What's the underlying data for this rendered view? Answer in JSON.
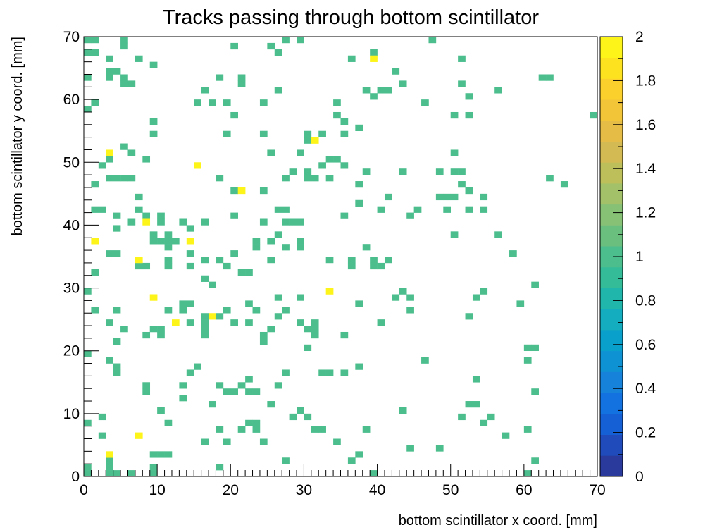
{
  "chart_data": {
    "type": "heatmap",
    "title": "Tracks passing through bottom scintillator",
    "xlabel": "bottom scintillator x coord. [mm]",
    "ylabel": "bottom scintillator y coord. [mm]",
    "xlim": [
      0,
      70
    ],
    "ylim": [
      0,
      70
    ],
    "bin_width": 1,
    "x_ticks": [
      "0",
      "10",
      "20",
      "30",
      "40",
      "50",
      "60",
      "70"
    ],
    "y_ticks": [
      "0",
      "10",
      "20",
      "30",
      "40",
      "50",
      "60",
      "70"
    ],
    "z_range": [
      0,
      2
    ],
    "z_ticks": [
      "0",
      "0.2",
      "0.4",
      "0.6",
      "0.8",
      "1",
      "1.2",
      "1.4",
      "1.6",
      "1.8",
      "2"
    ],
    "palette": [
      "#2a3a9c",
      "#1f4cba",
      "#1660d6",
      "#1472e0",
      "#1682da",
      "#0f92d4",
      "#0aa0cc",
      "#14acbf",
      "#20b6ac",
      "#34bc98",
      "#4cbe8e",
      "#6abf7f",
      "#86c176",
      "#a2c168",
      "#bdc05a",
      "#d4ba52",
      "#e4bc46",
      "#f2c438",
      "#fcd02c",
      "#fde220",
      "#fdf41a"
    ],
    "colors": {
      "count_1": "#4cbe8e",
      "count_2": "#fdf41a"
    },
    "grid": false,
    "legend": "colorbar-right",
    "points_value_2": [
      [
        39,
        66
      ],
      [
        31,
        53
      ],
      [
        3,
        51
      ],
      [
        15,
        49
      ],
      [
        21,
        45
      ],
      [
        8,
        40
      ],
      [
        1,
        37
      ],
      [
        14,
        37
      ],
      [
        7,
        34
      ],
      [
        33,
        29
      ],
      [
        9,
        28
      ],
      [
        12,
        24
      ],
      [
        17,
        25
      ],
      [
        7,
        6
      ],
      [
        3,
        3
      ]
    ],
    "points_value_1": [
      [
        0,
        69
      ],
      [
        1,
        69
      ],
      [
        5,
        69
      ],
      [
        27,
        69
      ],
      [
        29,
        69
      ],
      [
        47,
        69
      ],
      [
        5,
        68
      ],
      [
        20,
        68
      ],
      [
        25,
        68
      ],
      [
        0,
        67
      ],
      [
        1,
        67
      ],
      [
        26,
        67
      ],
      [
        39,
        67
      ],
      [
        3,
        66
      ],
      [
        7,
        66
      ],
      [
        36,
        66
      ],
      [
        51,
        66
      ],
      [
        9,
        65
      ],
      [
        3,
        64
      ],
      [
        4,
        64
      ],
      [
        42,
        64
      ],
      [
        0,
        63
      ],
      [
        3,
        63
      ],
      [
        5,
        63
      ],
      [
        18,
        63
      ],
      [
        21,
        63
      ],
      [
        62,
        63
      ],
      [
        63,
        63
      ],
      [
        5,
        62
      ],
      [
        6,
        62
      ],
      [
        21,
        62
      ],
      [
        43,
        62
      ],
      [
        51,
        62
      ],
      [
        16,
        61
      ],
      [
        26,
        61
      ],
      [
        38,
        61
      ],
      [
        40,
        61
      ],
      [
        41,
        61
      ],
      [
        56,
        61
      ],
      [
        39,
        60
      ],
      [
        52,
        60
      ],
      [
        1,
        59
      ],
      [
        15,
        59
      ],
      [
        17,
        59
      ],
      [
        19,
        59
      ],
      [
        24,
        59
      ],
      [
        34,
        59
      ],
      [
        46,
        59
      ],
      [
        0,
        58
      ],
      [
        20,
        57
      ],
      [
        34,
        57
      ],
      [
        50,
        57
      ],
      [
        52,
        57
      ],
      [
        69,
        57
      ],
      [
        9,
        56
      ],
      [
        35,
        56
      ],
      [
        37,
        55
      ],
      [
        9,
        54
      ],
      [
        19,
        54
      ],
      [
        24,
        54
      ],
      [
        30,
        54
      ],
      [
        32,
        54
      ],
      [
        35,
        54
      ],
      [
        30,
        53
      ],
      [
        5,
        52
      ],
      [
        6,
        51
      ],
      [
        25,
        51
      ],
      [
        29,
        51
      ],
      [
        50,
        51
      ],
      [
        33,
        50
      ],
      [
        34,
        50
      ],
      [
        3,
        50
      ],
      [
        8,
        50
      ],
      [
        2,
        49
      ],
      [
        32,
        49
      ],
      [
        35,
        49
      ],
      [
        28,
        48
      ],
      [
        30,
        48
      ],
      [
        38,
        48
      ],
      [
        43,
        48
      ],
      [
        48,
        48
      ],
      [
        50,
        48
      ],
      [
        51,
        48
      ],
      [
        3,
        47
      ],
      [
        4,
        47
      ],
      [
        5,
        47
      ],
      [
        6,
        47
      ],
      [
        18,
        47
      ],
      [
        27,
        47
      ],
      [
        30,
        47
      ],
      [
        31,
        47
      ],
      [
        33,
        47
      ],
      [
        63,
        47
      ],
      [
        1,
        46
      ],
      [
        37,
        46
      ],
      [
        51,
        46
      ],
      [
        65,
        46
      ],
      [
        20,
        45
      ],
      [
        24,
        45
      ],
      [
        52,
        45
      ],
      [
        7,
        44
      ],
      [
        41,
        44
      ],
      [
        48,
        44
      ],
      [
        49,
        44
      ],
      [
        50,
        44
      ],
      [
        54,
        44
      ],
      [
        37,
        43
      ],
      [
        1,
        42
      ],
      [
        2,
        42
      ],
      [
        7,
        42
      ],
      [
        26,
        42
      ],
      [
        27,
        42
      ],
      [
        40,
        42
      ],
      [
        45,
        42
      ],
      [
        49,
        42
      ],
      [
        52,
        42
      ],
      [
        54,
        42
      ],
      [
        4,
        41
      ],
      [
        8,
        41
      ],
      [
        10,
        41
      ],
      [
        20,
        41
      ],
      [
        35,
        41
      ],
      [
        44,
        41
      ],
      [
        6,
        40
      ],
      [
        10,
        40
      ],
      [
        13,
        40
      ],
      [
        16,
        40
      ],
      [
        24,
        40
      ],
      [
        27,
        40
      ],
      [
        28,
        40
      ],
      [
        29,
        40
      ],
      [
        4,
        39
      ],
      [
        14,
        39
      ],
      [
        9,
        38
      ],
      [
        11,
        38
      ],
      [
        26,
        38
      ],
      [
        50,
        38
      ],
      [
        56,
        38
      ],
      [
        9,
        37
      ],
      [
        10,
        37
      ],
      [
        11,
        37
      ],
      [
        12,
        37
      ],
      [
        23,
        37
      ],
      [
        25,
        37
      ],
      [
        29,
        37
      ],
      [
        11,
        36
      ],
      [
        23,
        36
      ],
      [
        27,
        36
      ],
      [
        29,
        36
      ],
      [
        38,
        36
      ],
      [
        3,
        35
      ],
      [
        4,
        35
      ],
      [
        14,
        35
      ],
      [
        20,
        35
      ],
      [
        58,
        35
      ],
      [
        11,
        34
      ],
      [
        16,
        34
      ],
      [
        18,
        34
      ],
      [
        25,
        34
      ],
      [
        33,
        34
      ],
      [
        36,
        34
      ],
      [
        39,
        34
      ],
      [
        41,
        34
      ],
      [
        7,
        33
      ],
      [
        8,
        33
      ],
      [
        11,
        33
      ],
      [
        14,
        33
      ],
      [
        19,
        33
      ],
      [
        36,
        33
      ],
      [
        39,
        33
      ],
      [
        40,
        33
      ],
      [
        1,
        32
      ],
      [
        21,
        32
      ],
      [
        22,
        32
      ],
      [
        16,
        31
      ],
      [
        61,
        30
      ],
      [
        17,
        30
      ],
      [
        0,
        29
      ],
      [
        43,
        29
      ],
      [
        54,
        29
      ],
      [
        26,
        28
      ],
      [
        29,
        28
      ],
      [
        42,
        28
      ],
      [
        44,
        28
      ],
      [
        53,
        28
      ],
      [
        13,
        27
      ],
      [
        14,
        27
      ],
      [
        22,
        27
      ],
      [
        37,
        27
      ],
      [
        59,
        27
      ],
      [
        1,
        26
      ],
      [
        4,
        26
      ],
      [
        11,
        26
      ],
      [
        13,
        26
      ],
      [
        19,
        26
      ],
      [
        23,
        26
      ],
      [
        27,
        26
      ],
      [
        44,
        26
      ],
      [
        16,
        25
      ],
      [
        18,
        25
      ],
      [
        26,
        25
      ],
      [
        52,
        25
      ],
      [
        3,
        24
      ],
      [
        14,
        24
      ],
      [
        16,
        24
      ],
      [
        20,
        24
      ],
      [
        22,
        24
      ],
      [
        29,
        24
      ],
      [
        31,
        24
      ],
      [
        40,
        24
      ],
      [
        5,
        23
      ],
      [
        9,
        23
      ],
      [
        10,
        23
      ],
      [
        16,
        23
      ],
      [
        25,
        23
      ],
      [
        30,
        23
      ],
      [
        31,
        23
      ],
      [
        8,
        22
      ],
      [
        10,
        22
      ],
      [
        16,
        22
      ],
      [
        24,
        22
      ],
      [
        31,
        22
      ],
      [
        35,
        22
      ],
      [
        24,
        21
      ],
      [
        4,
        21
      ],
      [
        30,
        20
      ],
      [
        60,
        20
      ],
      [
        61,
        20
      ],
      [
        0,
        19
      ],
      [
        46,
        18
      ],
      [
        60,
        18
      ],
      [
        3,
        18
      ],
      [
        4,
        17
      ],
      [
        15,
        17
      ],
      [
        37,
        17
      ],
      [
        4,
        16
      ],
      [
        14,
        16
      ],
      [
        27,
        16
      ],
      [
        32,
        16
      ],
      [
        33,
        16
      ],
      [
        35,
        16
      ],
      [
        22,
        15
      ],
      [
        53,
        15
      ],
      [
        13,
        14
      ],
      [
        18,
        14
      ],
      [
        21,
        14
      ],
      [
        26,
        14
      ],
      [
        8,
        14
      ],
      [
        19,
        13
      ],
      [
        20,
        13
      ],
      [
        22,
        13
      ],
      [
        23,
        13
      ],
      [
        8,
        13
      ],
      [
        61,
        13
      ],
      [
        13,
        12
      ],
      [
        52,
        11
      ],
      [
        17,
        11
      ],
      [
        25,
        11
      ],
      [
        53,
        11
      ],
      [
        10,
        10
      ],
      [
        29,
        10
      ],
      [
        43,
        10
      ],
      [
        28,
        9
      ],
      [
        30,
        9
      ],
      [
        51,
        9
      ],
      [
        55,
        9
      ],
      [
        2,
        9
      ],
      [
        0,
        8
      ],
      [
        11,
        8
      ],
      [
        22,
        8
      ],
      [
        23,
        8
      ],
      [
        54,
        8
      ],
      [
        18,
        7
      ],
      [
        21,
        7
      ],
      [
        23,
        7
      ],
      [
        31,
        7
      ],
      [
        32,
        7
      ],
      [
        38,
        7
      ],
      [
        60,
        7
      ],
      [
        2,
        6
      ],
      [
        57,
        6
      ],
      [
        16,
        5
      ],
      [
        19,
        5
      ],
      [
        24,
        5
      ],
      [
        34,
        5
      ],
      [
        44,
        4
      ],
      [
        48,
        4
      ],
      [
        9,
        3
      ],
      [
        10,
        3
      ],
      [
        11,
        3
      ],
      [
        37,
        3
      ],
      [
        3,
        2
      ],
      [
        27,
        2
      ],
      [
        36,
        2
      ],
      [
        61,
        2
      ],
      [
        0,
        1
      ],
      [
        3,
        1
      ],
      [
        9,
        1
      ],
      [
        18,
        1
      ],
      [
        0,
        0
      ],
      [
        3,
        0
      ],
      [
        4,
        0
      ],
      [
        6,
        0
      ],
      [
        9,
        0
      ],
      [
        39,
        0
      ],
      [
        60,
        0
      ]
    ]
  }
}
